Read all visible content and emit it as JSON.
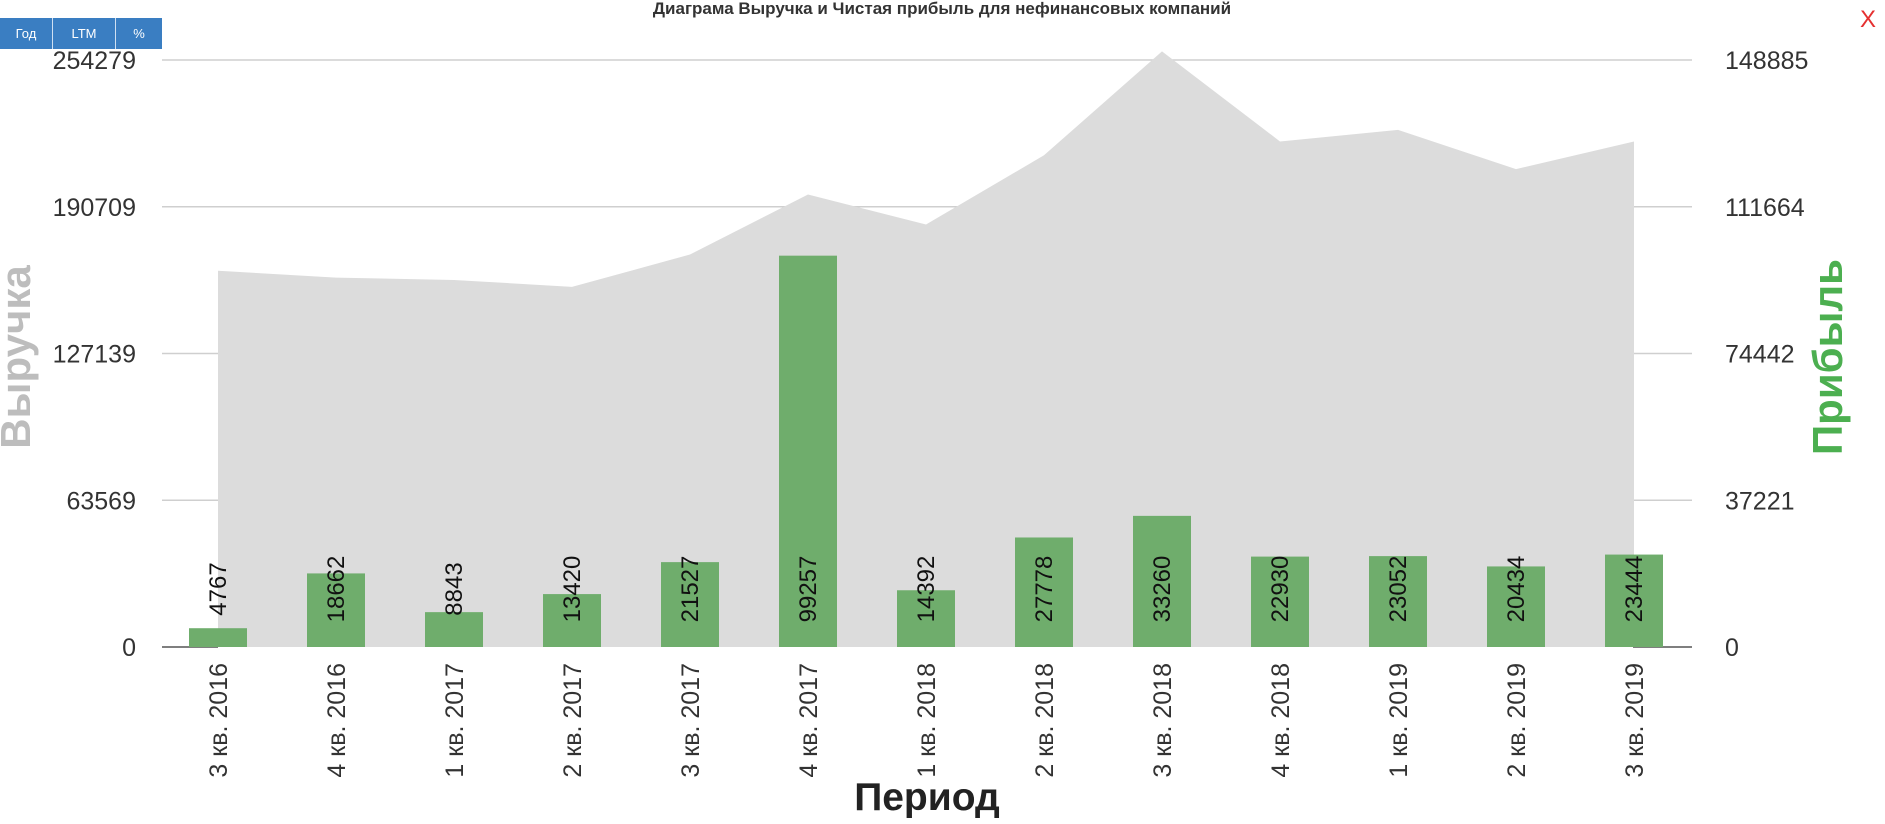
{
  "toolbar": {
    "year": "Год",
    "ltm": "LTM",
    "pct": "%"
  },
  "close_label": "X",
  "colors": {
    "revenue_area": "#dcdcdc",
    "profit_bar": "#6fad6c",
    "profit_label": "#4caf50",
    "revenue_label": "#bdbdbd",
    "button": "#3a7ec2",
    "close": "#e53030"
  },
  "chart_data": {
    "type": "bar",
    "title": "Диаграма Выручка и Чистая прибыль для нефинансовых компаний",
    "xlabel": "Период",
    "ylabel_left": "Выручка",
    "ylabel_right": "Прибыль",
    "categories": [
      "3 кв. 2016",
      "4 кв. 2016",
      "1 кв. 2017",
      "2 кв. 2017",
      "3 кв. 2017",
      "4 кв. 2017",
      "1 кв. 2018",
      "2 кв. 2018",
      "3 кв. 2018",
      "4 кв. 2018",
      "1 кв. 2019",
      "2 кв. 2019",
      "3 кв. 2019"
    ],
    "left_ticks": [
      "0",
      "63569",
      "127139",
      "190709",
      "254279"
    ],
    "right_ticks": [
      "0",
      "37221",
      "74442",
      "111664",
      "148885"
    ],
    "ylim_left": [
      0,
      254279
    ],
    "ylim_right": [
      0,
      148885
    ],
    "grid": true,
    "series": [
      {
        "type": "area",
        "axis": "left",
        "values": [
          163000,
          160000,
          159000,
          156000,
          170000,
          196000,
          183000,
          213000,
          258000,
          219000,
          224000,
          207000,
          219000
        ]
      },
      {
        "type": "bar",
        "axis": "right",
        "values": [
          4767,
          18662,
          8843,
          13420,
          21527,
          99257,
          14392,
          27778,
          33260,
          22930,
          23052,
          20434,
          23444
        ]
      }
    ]
  }
}
